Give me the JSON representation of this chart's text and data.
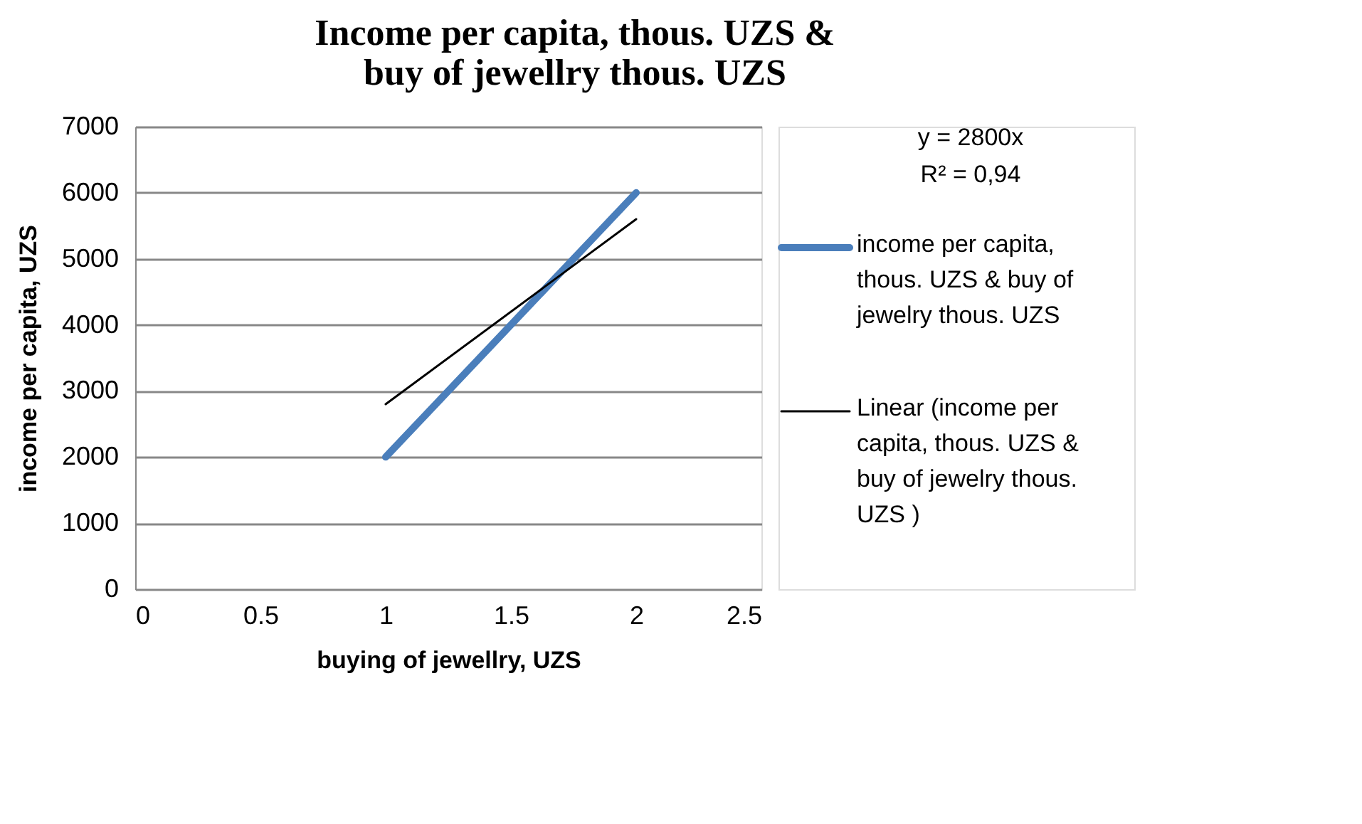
{
  "chart_data": {
    "type": "line",
    "title": [
      "Income  per capita, thous. UZS  &",
      "buy of jewellry thous. UZS"
    ],
    "xlabel": "buying of jewellry, UZS",
    "ylabel": "income per capita, UZS",
    "x": [
      1,
      2
    ],
    "series": [
      {
        "name": "income  per capita, thous. UZS  & buy of jewelry thous. UZS",
        "color": "#4a7ebb",
        "values": [
          2000,
          6000
        ]
      },
      {
        "name": "Linear (income  per capita, thous. UZS  & buy of jewelry thous. UZS  )",
        "color": "#000000",
        "type": "line",
        "x": [
          1,
          2
        ],
        "values": [
          2800,
          5600
        ]
      }
    ],
    "annotations": [
      "y = 2800x",
      "R² = 0,94"
    ],
    "xlim": [
      0,
      2.5
    ],
    "xticks": [
      0,
      0.5,
      1,
      1.5,
      2,
      2.5
    ],
    "ylim": [
      0,
      7000
    ],
    "yticks": [
      0,
      1000,
      2000,
      3000,
      4000,
      5000,
      6000,
      7000
    ],
    "grid": "y",
    "legend": "right",
    "marker": "none",
    "line_style": "solid"
  }
}
